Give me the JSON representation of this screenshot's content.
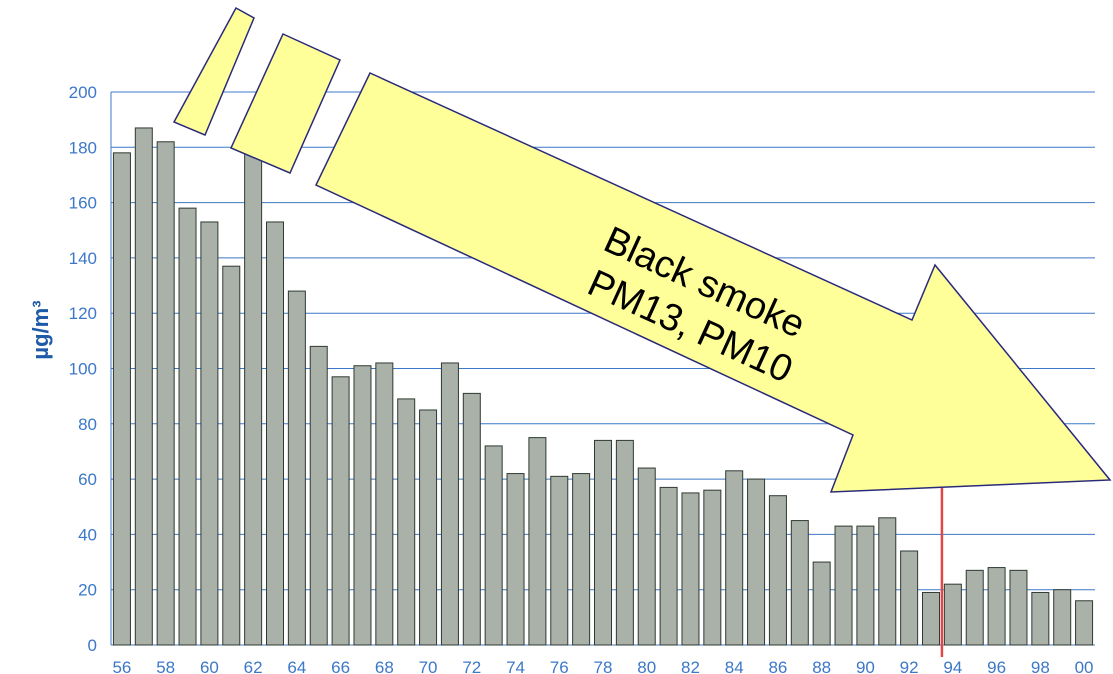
{
  "chart_data": {
    "type": "bar",
    "ylabel": "µg/m³",
    "ylim": [
      0,
      200
    ],
    "yticks": [
      0,
      20,
      40,
      60,
      80,
      100,
      120,
      140,
      160,
      180,
      200
    ],
    "categories": [
      "56",
      "57",
      "58",
      "59",
      "60",
      "61",
      "62",
      "63",
      "64",
      "65",
      "66",
      "67",
      "68",
      "69",
      "70",
      "71",
      "72",
      "73",
      "74",
      "75",
      "76",
      "77",
      "78",
      "79",
      "80",
      "81",
      "82",
      "83",
      "84",
      "85",
      "86",
      "87",
      "88",
      "89",
      "90",
      "91",
      "92",
      "93",
      "94",
      "95",
      "96",
      "97",
      "98",
      "99",
      "00"
    ],
    "xtick_labels": [
      "56",
      "58",
      "60",
      "62",
      "64",
      "66",
      "68",
      "70",
      "72",
      "74",
      "76",
      "78",
      "80",
      "82",
      "84",
      "86",
      "88",
      "90",
      "92",
      "94",
      "96",
      "98",
      "00"
    ],
    "values": [
      178,
      187,
      182,
      158,
      153,
      137,
      178,
      153,
      128,
      108,
      97,
      101,
      102,
      89,
      85,
      102,
      91,
      72,
      62,
      75,
      61,
      62,
      74,
      74,
      64,
      57,
      55,
      56,
      63,
      60,
      54,
      45,
      30,
      43,
      43,
      46,
      34,
      19,
      22,
      27,
      28,
      27,
      19,
      20,
      16
    ],
    "bar_color": "#a9b1a8",
    "grid_color": "#3c78c8",
    "marker_line": {
      "after_category": "93",
      "color": "#e04848"
    },
    "annotation": {
      "lines": [
        "Black smoke",
        "PM13, PM10"
      ],
      "fill": "#ffff99",
      "stroke": "#2a2a7a"
    }
  }
}
